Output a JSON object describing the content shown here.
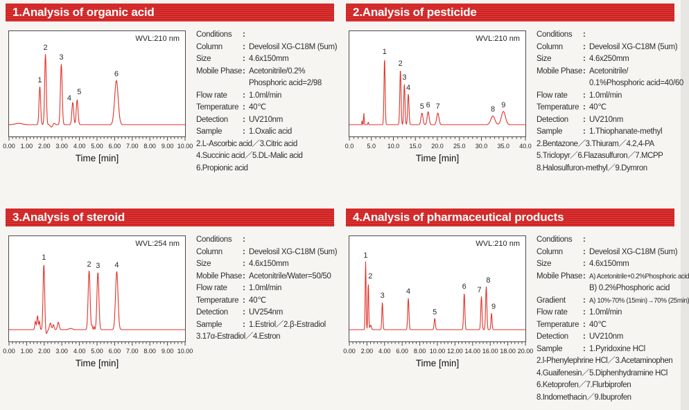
{
  "colors": {
    "header_red": "#d92121",
    "trace_red": "#e03127",
    "frame_gray": "#4a4a4a",
    "page_bg": "#f7f5f2"
  },
  "panels": [
    {
      "title": "1.Analysis of organic acid",
      "conditions": {
        "rows": [
          {
            "label": "Conditions",
            "value": ""
          },
          {
            "label": "Column",
            "value": "Develosil XG-C18M (5um)"
          },
          {
            "label": "Size",
            "value": "4.6x150mm"
          },
          {
            "label": "Mobile Phase",
            "value": "Acetonitrile/0.2%",
            "value2": "Phosphoric acid=2/98"
          },
          {
            "label": "Flow rate",
            "value": "1.0ml/min"
          },
          {
            "label": "Temperature",
            "value": "40℃"
          },
          {
            "label": "Detection",
            "value": "UV210nm"
          },
          {
            "label": "Sample",
            "value": "1.Oxalic acid"
          }
        ],
        "extra": [
          "2.L-Ascorbic acid／3.Citric acid",
          "4.Succinic acid／5.DL-Malic acid",
          "6.Propionic acid"
        ]
      }
    },
    {
      "title": "2.Analysis of pesticide",
      "conditions": {
        "rows": [
          {
            "label": "Conditions",
            "value": ""
          },
          {
            "label": "Column",
            "value": "Develosil XG-C18M (5um)"
          },
          {
            "label": "Size",
            "value": "4.6x250mm"
          },
          {
            "label": "Mobile Phase",
            "value": "Acetonitrile/",
            "value2": "0.1%Phosphoric acid=40/60"
          },
          {
            "label": "Flow rate",
            "value": "1.0ml/min"
          },
          {
            "label": "Temperature",
            "value": "40℃"
          },
          {
            "label": "Detection",
            "value": "UV210nm"
          },
          {
            "label": "Sample",
            "value": "1.Thiophanate-methyl"
          }
        ],
        "extra": [
          "2.Bentazone／3.Thiuram／4.2,4-PA",
          "5.Triclopyr／6.Flazasulfuron／7.MCPP",
          "8.Halosulfuron-methyl／9.Dymron"
        ]
      }
    },
    {
      "title": "3.Analysis of steroid",
      "conditions": {
        "rows": [
          {
            "label": "Conditions",
            "value": ""
          },
          {
            "label": "Column",
            "value": "Develosil XG-C18M (5um)"
          },
          {
            "label": "Size",
            "value": "4.6x150mm"
          },
          {
            "label": "Mobile Phase",
            "value": "Acetonitrile/Water=50/50"
          },
          {
            "label": "Flow rate",
            "value": "1.0ml/min"
          },
          {
            "label": "Temperature",
            "value": "40℃"
          },
          {
            "label": "Detection",
            "value": "UV254nm"
          },
          {
            "label": "Sample",
            "value": "1.Estriol／2.β-Estradiol"
          }
        ],
        "extra": [
          "3.17α-Estradiol／4.Estron"
        ]
      }
    },
    {
      "title": "4.Analysis of pharmaceutical products",
      "conditions": {
        "rows": [
          {
            "label": "Conditions",
            "value": ""
          },
          {
            "label": "Column",
            "value": "Develosil XG-C18M (5um)"
          },
          {
            "label": "Size",
            "value": "4.6x150mm"
          },
          {
            "label": "Mobile Phase",
            "value": "A) Acetonitrile+0.2%Phosphoric acid",
            "value_small": true,
            "value2": "B) 0.2%Phosphoric acid"
          },
          {
            "label": "Gradient",
            "value": "A) 10%-70% (15min)→70% (25min)",
            "value_small": true
          },
          {
            "label": "Flow rate",
            "value": "1.0ml/min"
          },
          {
            "label": "Temperature",
            "value": "40℃"
          },
          {
            "label": "Detection",
            "value": "UV210nm"
          },
          {
            "label": "Sample",
            "value": "1.Pyridoxine HCl"
          }
        ],
        "extra": [
          "2.l-Phenylephrine HCl／3.Acetaminophen",
          "4.Guaifenesin／5.Diphenhydramine HCl",
          "6.Ketoprofen／7.Flurbiprofen",
          "8.Indomethacin／9.Ibuprofen"
        ]
      }
    }
  ],
  "chart_data": [
    {
      "type": "line",
      "title": "1.Analysis of organic acid",
      "wvl": "WVL:210 nm",
      "xlabel": "Time [min]",
      "ylabel": "",
      "xlim": [
        0,
        10
      ],
      "tick_labels": [
        "0.00",
        "1.00",
        "2.00",
        "3.00",
        "4.00",
        "5.00",
        "6.00",
        "7.00",
        "8.00",
        "9.00",
        "10.00"
      ],
      "minor_per_major": 4,
      "peaks": [
        {
          "label": "1",
          "t": 1.75,
          "h": 0.46,
          "w": 0.045
        },
        {
          "label": "2",
          "t": 2.07,
          "h": 0.85,
          "w": 0.045
        },
        {
          "label": "3",
          "t": 2.97,
          "h": 0.73,
          "w": 0.05
        },
        {
          "label": "4",
          "t": 3.62,
          "h": 0.27,
          "w": 0.05,
          "dx": -5,
          "dy": 3
        },
        {
          "label": "5",
          "t": 3.87,
          "h": 0.3,
          "w": 0.05,
          "dx": 3,
          "dy": -2
        },
        {
          "label": "6",
          "t": 6.1,
          "h": 0.53,
          "w": 0.1
        }
      ],
      "noise": [
        {
          "t": 0.55,
          "h": 0.015,
          "w": 0.2
        },
        {
          "t": 2.42,
          "h": -0.03,
          "w": 0.07
        },
        {
          "t": 2.55,
          "h": 0.02,
          "w": 0.06
        }
      ]
    },
    {
      "type": "line",
      "title": "2.Analysis of pesticide",
      "wvl": "WVL:210 nm",
      "xlabel": "Time [min]",
      "ylabel": "",
      "xlim": [
        0,
        40
      ],
      "tick_labels": [
        "0.0",
        "5.0",
        "10.0",
        "15.0",
        "20.0",
        "25.0",
        "30.0",
        "35.0",
        "40.0"
      ],
      "minor_per_major": 4,
      "peaks": [
        {
          "label": "1",
          "t": 8.0,
          "h": 0.8,
          "w": 0.13
        },
        {
          "label": "2",
          "t": 11.6,
          "h": 0.66,
          "w": 0.14
        },
        {
          "label": "3",
          "t": 12.5,
          "h": 0.49,
          "w": 0.14
        },
        {
          "label": "4",
          "t": 13.4,
          "h": 0.37,
          "w": 0.15
        },
        {
          "label": "5",
          "t": 16.5,
          "h": 0.14,
          "w": 0.22
        },
        {
          "label": "6",
          "t": 17.9,
          "h": 0.155,
          "w": 0.22
        },
        {
          "label": "7",
          "t": 20.1,
          "h": 0.14,
          "w": 0.25
        },
        {
          "label": "8",
          "t": 32.6,
          "h": 0.105,
          "w": 0.45
        },
        {
          "label": "9",
          "t": 35.0,
          "h": 0.16,
          "w": 0.45
        }
      ],
      "noise": [
        {
          "t": 2.9,
          "h": 0.05,
          "w": 0.06
        },
        {
          "t": 3.3,
          "h": 0.14,
          "w": 0.07
        },
        {
          "t": 4.3,
          "h": 0.03,
          "w": 0.08
        }
      ]
    },
    {
      "type": "line",
      "title": "3.Analysis of steroid",
      "wvl": "WVL:254 nm",
      "xlabel": "Time [min]",
      "ylabel": "",
      "xlim": [
        0,
        10
      ],
      "tick_labels": [
        "0.00",
        "1.00",
        "2.00",
        "3.00",
        "4.00",
        "5.00",
        "6.00",
        "7.00",
        "8.00",
        "9.00",
        "10.00"
      ],
      "minor_per_major": 4,
      "peaks": [
        {
          "label": "1",
          "t": 1.98,
          "h": 0.79,
          "w": 0.045
        },
        {
          "label": "2",
          "t": 4.55,
          "h": 0.71,
          "w": 0.055
        },
        {
          "label": "3",
          "t": 5.05,
          "h": 0.69,
          "w": 0.055
        },
        {
          "label": "4",
          "t": 6.12,
          "h": 0.7,
          "w": 0.07
        }
      ],
      "noise": [
        {
          "t": 1.5,
          "h": 0.1,
          "w": 0.035
        },
        {
          "t": 1.62,
          "h": 0.17,
          "w": 0.035
        },
        {
          "t": 1.73,
          "h": 0.1,
          "w": 0.03
        },
        {
          "t": 2.12,
          "h": -0.05,
          "w": 0.05
        },
        {
          "t": 2.35,
          "h": 0.08,
          "w": 0.05
        },
        {
          "t": 2.52,
          "h": 0.06,
          "w": 0.04
        },
        {
          "t": 2.8,
          "h": 0.09,
          "w": 0.05
        },
        {
          "t": 3.5,
          "h": 0.015,
          "w": 0.1
        },
        {
          "t": 4.72,
          "h": 0.05,
          "w": 0.025
        },
        {
          "t": 4.83,
          "h": 0.04,
          "w": 0.02
        }
      ]
    },
    {
      "type": "line",
      "title": "4.Analysis of pharmaceutical products",
      "wvl": "WVL:210 nm",
      "xlabel": "Time [min]",
      "ylabel": "",
      "xlim": [
        0,
        20
      ],
      "tick_labels": [
        "0.00",
        "2.00",
        "4.00",
        "6.00",
        "8.00",
        "10.00",
        "12.00",
        "14.00",
        "16.00",
        "18.00",
        "20.00"
      ],
      "minor_per_major": 4,
      "peaks": [
        {
          "label": "1",
          "t": 1.85,
          "h": 0.82,
          "w": 0.05
        },
        {
          "label": "2",
          "t": 2.15,
          "h": 0.57,
          "w": 0.05,
          "dx": 3
        },
        {
          "label": "3",
          "t": 3.75,
          "h": 0.33,
          "w": 0.06
        },
        {
          "label": "4",
          "t": 6.7,
          "h": 0.38,
          "w": 0.07
        },
        {
          "label": "5",
          "t": 9.7,
          "h": 0.135,
          "w": 0.07
        },
        {
          "label": "6",
          "t": 13.05,
          "h": 0.44,
          "w": 0.07
        },
        {
          "label": "7",
          "t": 15.0,
          "h": 0.4,
          "w": 0.07,
          "dx": -3
        },
        {
          "label": "8",
          "t": 15.55,
          "h": 0.52,
          "w": 0.07,
          "dx": 3
        },
        {
          "label": "9",
          "t": 16.15,
          "h": 0.2,
          "w": 0.06,
          "dx": 3
        }
      ],
      "noise": [
        {
          "t": 2.42,
          "h": 0.055,
          "w": 0.08
        }
      ]
    }
  ]
}
